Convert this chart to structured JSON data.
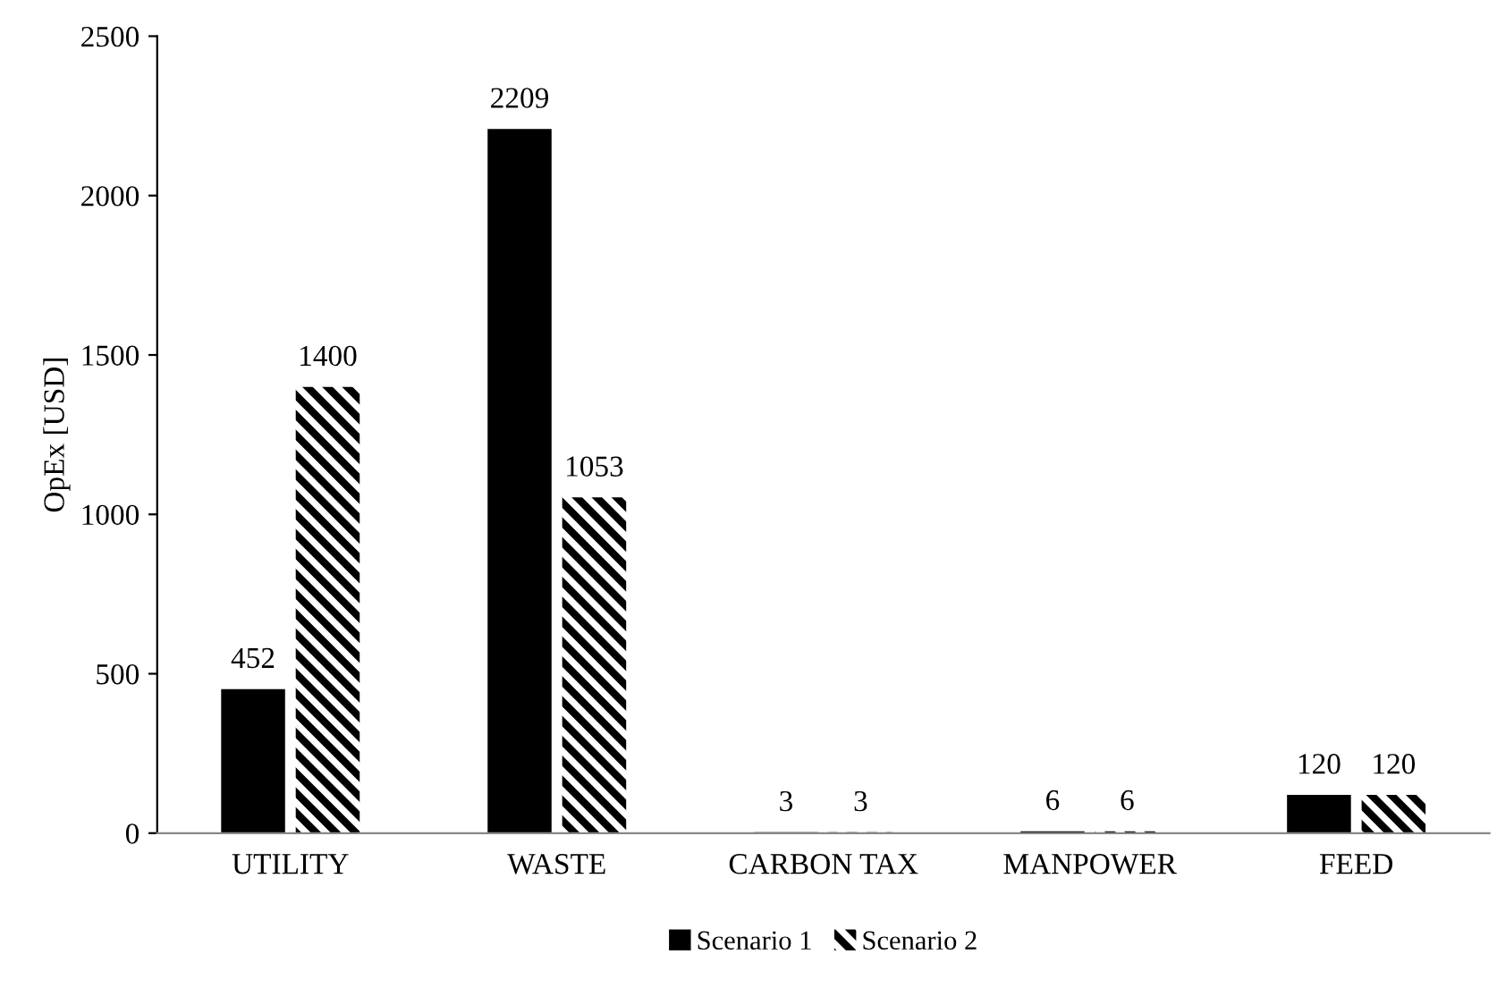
{
  "chart_data": {
    "type": "bar",
    "ylabel": "OpEx [USD]",
    "categories": [
      "UTILITY",
      "WASTE",
      "CARBON TAX",
      "MANPOWER",
      "FEED"
    ],
    "series": [
      {
        "name": "Scenario 1",
        "color": "#000000",
        "values": [
          452,
          2209,
          3,
          6,
          120
        ]
      },
      {
        "name": "Scenario 2",
        "color": "#000000",
        "values": [
          1400,
          1053,
          3,
          6,
          120
        ]
      }
    ],
    "ylim": [
      0,
      2500
    ],
    "yticks": [
      0,
      500,
      1000,
      1500,
      2000,
      2500
    ],
    "grid": false,
    "legend": "bottom",
    "data_labels": true
  }
}
